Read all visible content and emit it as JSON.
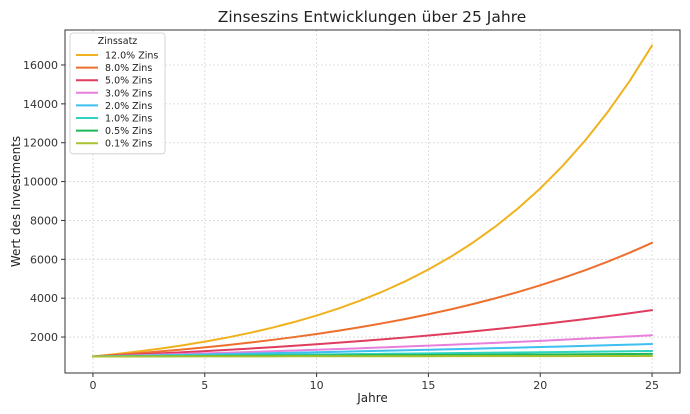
{
  "chart_data": {
    "type": "line",
    "title": "Zinseszins Entwicklungen über 25 Jahre",
    "xlabel": "Jahre",
    "ylabel": "Wert des Investments",
    "xlim": [
      -1.25,
      26.25
    ],
    "ylim": [
      150,
      17800
    ],
    "x_ticks": [
      0,
      5,
      10,
      15,
      20,
      25
    ],
    "y_ticks": [
      2000,
      4000,
      6000,
      8000,
      10000,
      12000,
      14000,
      16000
    ],
    "grid": true,
    "legend": {
      "title": "Zinssatz",
      "position": "top-left"
    },
    "principal": 1000,
    "x": [
      0,
      1,
      2,
      3,
      4,
      5,
      6,
      7,
      8,
      9,
      10,
      11,
      12,
      13,
      14,
      15,
      16,
      17,
      18,
      19,
      20,
      21,
      22,
      23,
      24,
      25
    ],
    "series": [
      {
        "name": "12.0% Zins",
        "color": "#f0b21c",
        "values": [
          1000,
          1120,
          1254,
          1405,
          1574,
          1762,
          1974,
          2211,
          2476,
          2773,
          3106,
          3479,
          3896,
          4363,
          4887,
          5474,
          6130,
          6866,
          7690,
          8613,
          9646,
          10804,
          12100,
          13552,
          15179,
          17000
        ]
      },
      {
        "name": "8.0% Zins",
        "color": "#ee6f2d",
        "values": [
          1000,
          1080,
          1166,
          1260,
          1360,
          1469,
          1587,
          1714,
          1851,
          1999,
          2159,
          2332,
          2518,
          2720,
          2937,
          3172,
          3426,
          3700,
          3996,
          4316,
          4661,
          5034,
          5437,
          5871,
          6341,
          6848
        ]
      },
      {
        "name": "5.0% Zins",
        "color": "#e03c5e",
        "values": [
          1000,
          1050,
          1103,
          1158,
          1216,
          1276,
          1340,
          1407,
          1477,
          1551,
          1629,
          1710,
          1796,
          1886,
          1980,
          2079,
          2183,
          2292,
          2407,
          2527,
          2653,
          2786,
          2925,
          3072,
          3225,
          3386
        ]
      },
      {
        "name": "3.0% Zins",
        "color": "#e87fdc",
        "values": [
          1000,
          1030,
          1061,
          1093,
          1126,
          1159,
          1194,
          1230,
          1267,
          1305,
          1344,
          1384,
          1426,
          1469,
          1513,
          1558,
          1605,
          1653,
          1702,
          1754,
          1806,
          1860,
          1916,
          1974,
          2033,
          2094
        ]
      },
      {
        "name": "2.0% Zins",
        "color": "#3dbff0",
        "values": [
          1000,
          1020,
          1040,
          1061,
          1082,
          1104,
          1126,
          1149,
          1172,
          1195,
          1219,
          1243,
          1268,
          1294,
          1319,
          1346,
          1373,
          1400,
          1428,
          1457,
          1486,
          1516,
          1546,
          1577,
          1608,
          1641
        ]
      },
      {
        "name": "1.0% Zins",
        "color": "#2ed3c0",
        "values": [
          1000,
          1010,
          1020,
          1030,
          1041,
          1051,
          1062,
          1072,
          1083,
          1094,
          1105,
          1116,
          1127,
          1138,
          1149,
          1161,
          1173,
          1184,
          1196,
          1208,
          1220,
          1232,
          1245,
          1257,
          1270,
          1282
        ]
      },
      {
        "name": "0.5% Zins",
        "color": "#1fb856",
        "values": [
          1000,
          1005,
          1010,
          1015,
          1020,
          1025,
          1030,
          1036,
          1041,
          1046,
          1051,
          1056,
          1062,
          1067,
          1072,
          1078,
          1083,
          1088,
          1094,
          1099,
          1105,
          1110,
          1116,
          1122,
          1127,
          1133
        ]
      },
      {
        "name": "0.1% Zins",
        "color": "#a8c232",
        "values": [
          1000,
          1001,
          1002,
          1003,
          1004,
          1005,
          1006,
          1007,
          1008,
          1009,
          1010,
          1011,
          1012,
          1013,
          1014,
          1015,
          1016,
          1017,
          1018,
          1019,
          1020,
          1021,
          1022,
          1023,
          1024,
          1025
        ]
      }
    ]
  }
}
